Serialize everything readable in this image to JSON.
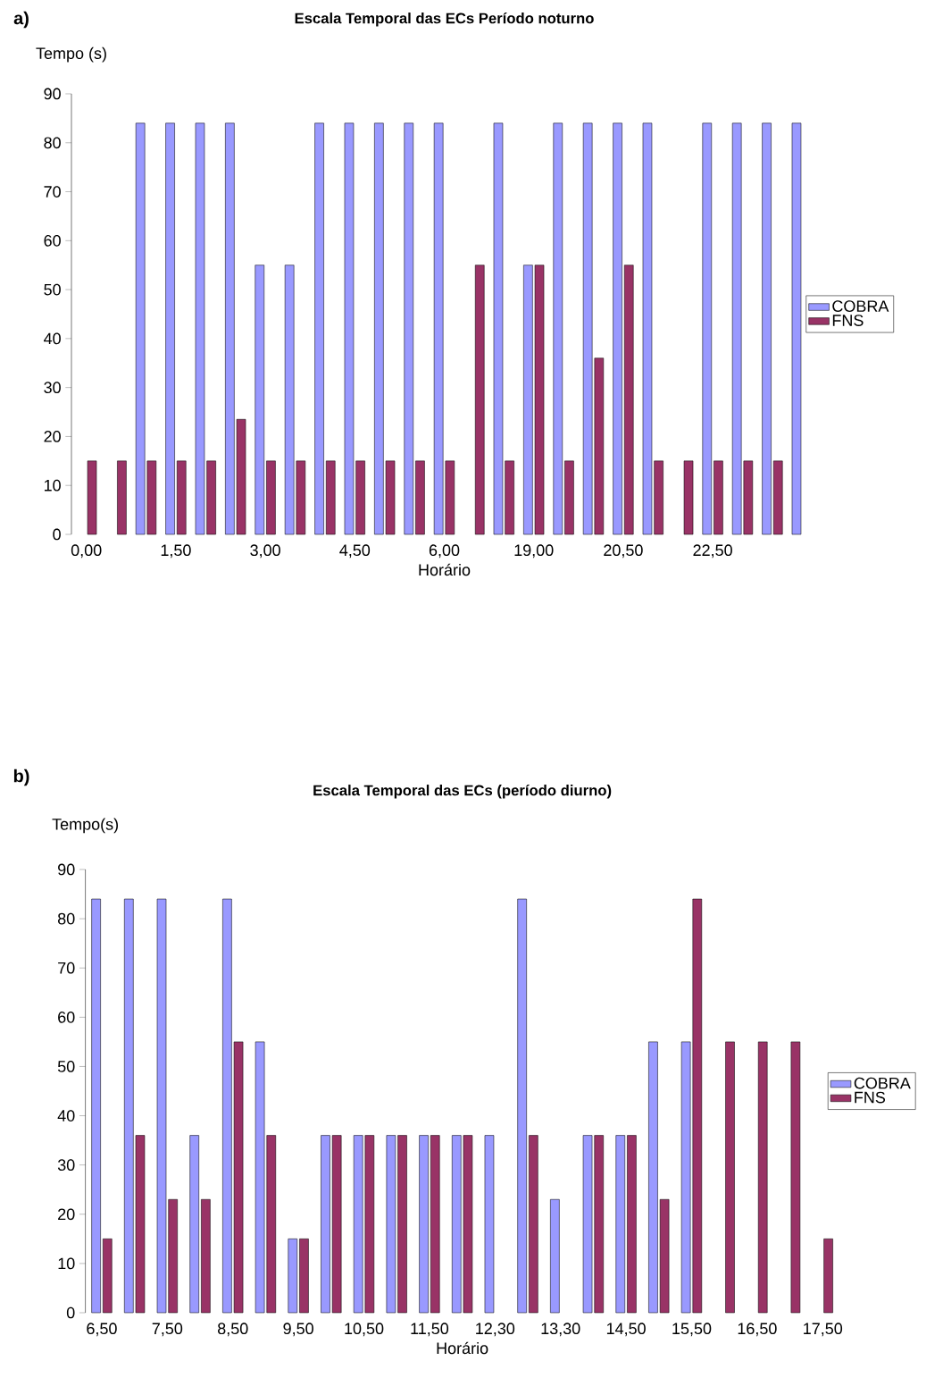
{
  "chart_data": [
    {
      "type": "bar",
      "title": "Escala Temporal das ECs Período noturno",
      "xlabel": "Horário",
      "ylabel": "Tempo (s)",
      "annotations": [
        "a)"
      ],
      "categories": [
        "0,00",
        null,
        null,
        "1,50",
        null,
        null,
        "3,00",
        null,
        null,
        "4,50",
        null,
        null,
        "6,00",
        null,
        null,
        "19,00",
        null,
        null,
        "20,50",
        null,
        null,
        "22,50",
        null,
        null,
        null
      ],
      "series": [
        {
          "name": "COBRA",
          "color": "#9999ff",
          "values": [
            null,
            null,
            84,
            84,
            84,
            84,
            55,
            55,
            84,
            84,
            84,
            84,
            84,
            null,
            84,
            55,
            84,
            84,
            84,
            84,
            null,
            84,
            84,
            84,
            84
          ]
        },
        {
          "name": "FNS",
          "color": "#993366",
          "values": [
            15,
            15,
            15,
            15,
            15,
            23.5,
            15,
            15,
            15,
            15,
            15,
            15,
            15,
            55,
            15,
            55,
            15,
            36,
            55,
            15,
            15,
            15,
            15,
            15,
            null
          ]
        }
      ],
      "ylim": [
        0,
        90
      ],
      "yticks": [
        0,
        10,
        20,
        30,
        40,
        50,
        60,
        70,
        80,
        90
      ],
      "legend": "right"
    },
    {
      "type": "bar",
      "title": "Escala Temporal das ECs (período diurno)",
      "xlabel": "Horário",
      "ylabel": "Tempo(s)",
      "annotations": [
        "b)"
      ],
      "categories": [
        "6,50",
        null,
        "7,50",
        null,
        "8,50",
        null,
        "9,50",
        null,
        "10,50",
        null,
        "11,50",
        null,
        "12,30",
        null,
        "13,30",
        null,
        "14,50",
        null,
        "15,50",
        null,
        "16,50",
        null,
        "17,50"
      ],
      "series": [
        {
          "name": "COBRA",
          "color": "#9999ff",
          "values": [
            84,
            84,
            84,
            36,
            84,
            55,
            15,
            36,
            36,
            36,
            36,
            36,
            36,
            84,
            23,
            36,
            36,
            55,
            55,
            null,
            null,
            null,
            null
          ]
        },
        {
          "name": "FNS",
          "color": "#993366",
          "values": [
            15,
            36,
            23,
            23,
            55,
            36,
            15,
            36,
            36,
            36,
            36,
            36,
            null,
            36,
            null,
            36,
            36,
            23,
            84,
            55,
            55,
            55,
            15
          ]
        }
      ],
      "ylim": [
        0,
        90
      ],
      "yticks": [
        0,
        10,
        20,
        30,
        40,
        50,
        60,
        70,
        80,
        90
      ],
      "legend": "right"
    }
  ]
}
